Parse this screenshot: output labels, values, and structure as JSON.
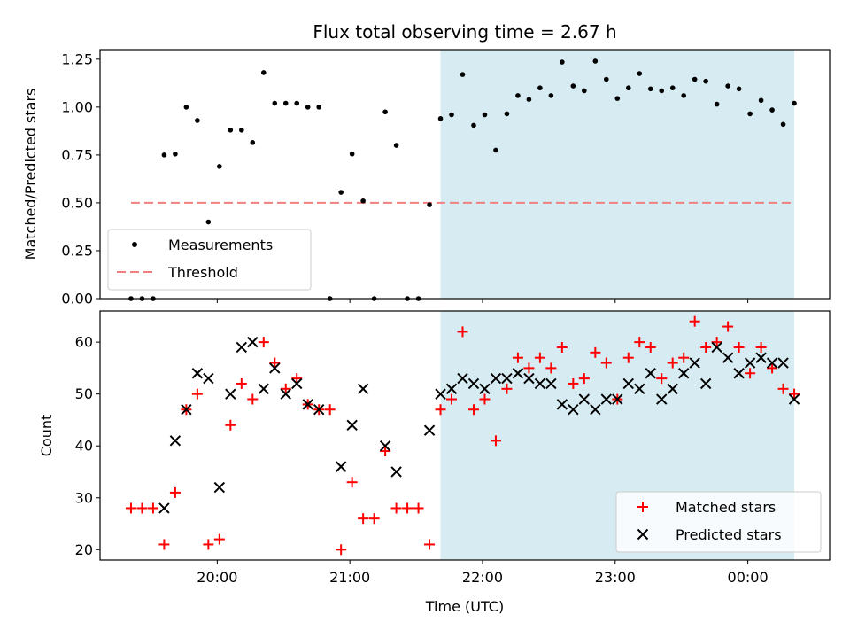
{
  "chart_data": [
    {
      "type": "scatter",
      "title": "Flux total observing time = 2.67 h",
      "ylabel": "Matched/Predicted stars",
      "xlabel": "",
      "ylim": [
        0,
        1.3
      ],
      "yticks": [
        "0.00",
        "0.25",
        "0.50",
        "0.75",
        "1.00",
        "1.25"
      ],
      "ytick_values": [
        0,
        0.25,
        0.5,
        0.75,
        1.0,
        1.25
      ],
      "shaded_region": {
        "start": "21:41",
        "end": "00:21",
        "color": "#add8e6"
      },
      "threshold": {
        "name": "Threshold",
        "value": 0.5,
        "start": "19:21",
        "end": "00:21",
        "color": "#f08080",
        "style": "dashed"
      },
      "legend_position": "lower-left",
      "series": [
        {
          "name": "Measurements",
          "marker": "dot",
          "color": "#000000",
          "points": [
            [
              "19:21",
              0.0
            ],
            [
              "19:26",
              0.0
            ],
            [
              "19:31",
              0.0
            ],
            [
              "19:36",
              0.75
            ],
            [
              "19:41",
              0.755
            ],
            [
              "19:46",
              1.0
            ],
            [
              "19:51",
              0.93
            ],
            [
              "19:56",
              0.4
            ],
            [
              "20:01",
              0.69
            ],
            [
              "20:06",
              0.88
            ],
            [
              "20:11",
              0.88
            ],
            [
              "20:16",
              0.815
            ],
            [
              "20:21",
              1.18
            ],
            [
              "20:26",
              1.02
            ],
            [
              "20:31",
              1.02
            ],
            [
              "20:36",
              1.02
            ],
            [
              "20:41",
              1.0
            ],
            [
              "20:46",
              1.0
            ],
            [
              "20:51",
              0.0
            ],
            [
              "20:56",
              0.555
            ],
            [
              "21:01",
              0.755
            ],
            [
              "21:06",
              0.51
            ],
            [
              "21:11",
              0.0
            ],
            [
              "21:16",
              0.975
            ],
            [
              "21:21",
              0.8
            ],
            [
              "21:26",
              0.0
            ],
            [
              "21:31",
              0.0
            ],
            [
              "21:36",
              0.49
            ],
            [
              "21:41",
              0.94
            ],
            [
              "21:46",
              0.96
            ],
            [
              "21:51",
              1.17
            ],
            [
              "21:56",
              0.905
            ],
            [
              "22:01",
              0.96
            ],
            [
              "22:06",
              0.775
            ],
            [
              "22:11",
              0.965
            ],
            [
              "22:16",
              1.06
            ],
            [
              "22:21",
              1.04
            ],
            [
              "22:26",
              1.1
            ],
            [
              "22:31",
              1.06
            ],
            [
              "22:36",
              1.235
            ],
            [
              "22:41",
              1.11
            ],
            [
              "22:46",
              1.085
            ],
            [
              "22:51",
              1.24
            ],
            [
              "22:56",
              1.145
            ],
            [
              "23:01",
              1.045
            ],
            [
              "23:06",
              1.1
            ],
            [
              "23:11",
              1.175
            ],
            [
              "23:16",
              1.095
            ],
            [
              "23:21",
              1.085
            ],
            [
              "23:26",
              1.1
            ],
            [
              "23:31",
              1.06
            ],
            [
              "23:36",
              1.145
            ],
            [
              "23:41",
              1.135
            ],
            [
              "23:46",
              1.015
            ],
            [
              "23:51",
              1.11
            ],
            [
              "23:56",
              1.095
            ],
            [
              "00:01",
              0.965
            ],
            [
              "00:06",
              1.035
            ],
            [
              "00:11",
              0.985
            ],
            [
              "00:16",
              0.91
            ],
            [
              "00:21",
              1.02
            ]
          ]
        }
      ]
    },
    {
      "type": "scatter",
      "title": "",
      "xlabel": "Time (UTC)",
      "ylabel": "Count",
      "ylim": [
        18,
        66
      ],
      "yticks": [
        "20",
        "30",
        "40",
        "50",
        "60"
      ],
      "ytick_values": [
        20,
        30,
        40,
        50,
        60
      ],
      "xticks": [
        "20:00",
        "21:00",
        "22:00",
        "23:00",
        "00:00"
      ],
      "x_range": [
        "19:07",
        "00:37"
      ],
      "shaded_region": {
        "start": "21:41",
        "end": "00:21",
        "color": "#add8e6"
      },
      "legend_position": "lower-right",
      "series": [
        {
          "name": "Matched stars",
          "marker": "plus",
          "color": "#ff0000",
          "points": [
            [
              "19:21",
              28
            ],
            [
              "19:26",
              28
            ],
            [
              "19:31",
              28
            ],
            [
              "19:36",
              21
            ],
            [
              "19:41",
              31
            ],
            [
              "19:46",
              47
            ],
            [
              "19:51",
              50
            ],
            [
              "19:56",
              21
            ],
            [
              "20:01",
              22
            ],
            [
              "20:06",
              44
            ],
            [
              "20:11",
              52
            ],
            [
              "20:16",
              49
            ],
            [
              "20:21",
              60
            ],
            [
              "20:26",
              56
            ],
            [
              "20:31",
              51
            ],
            [
              "20:36",
              53
            ],
            [
              "20:41",
              48
            ],
            [
              "20:46",
              47
            ],
            [
              "20:51",
              47
            ],
            [
              "20:56",
              20
            ],
            [
              "21:01",
              33
            ],
            [
              "21:06",
              26
            ],
            [
              "21:11",
              26
            ],
            [
              "21:16",
              39
            ],
            [
              "21:21",
              28
            ],
            [
              "21:26",
              28
            ],
            [
              "21:31",
              28
            ],
            [
              "21:36",
              21
            ],
            [
              "21:41",
              47
            ],
            [
              "21:46",
              49
            ],
            [
              "21:51",
              62
            ],
            [
              "21:56",
              47
            ],
            [
              "22:01",
              49
            ],
            [
              "22:06",
              41
            ],
            [
              "22:11",
              51
            ],
            [
              "22:16",
              57
            ],
            [
              "22:21",
              55
            ],
            [
              "22:26",
              57
            ],
            [
              "22:31",
              55
            ],
            [
              "22:36",
              59
            ],
            [
              "22:41",
              52
            ],
            [
              "22:46",
              53
            ],
            [
              "22:51",
              58
            ],
            [
              "22:56",
              56
            ],
            [
              "23:01",
              49
            ],
            [
              "23:06",
              57
            ],
            [
              "23:11",
              60
            ],
            [
              "23:16",
              59
            ],
            [
              "23:21",
              53
            ],
            [
              "23:26",
              56
            ],
            [
              "23:31",
              57
            ],
            [
              "23:36",
              64
            ],
            [
              "23:41",
              59
            ],
            [
              "23:46",
              60
            ],
            [
              "23:51",
              63
            ],
            [
              "23:56",
              59
            ],
            [
              "00:01",
              54
            ],
            [
              "00:06",
              59
            ],
            [
              "00:11",
              55
            ],
            [
              "00:16",
              51
            ],
            [
              "00:21",
              50
            ]
          ]
        },
        {
          "name": "Predicted stars",
          "marker": "x",
          "color": "#000000",
          "points": [
            [
              "19:36",
              28
            ],
            [
              "19:41",
              41
            ],
            [
              "19:46",
              47
            ],
            [
              "19:51",
              54
            ],
            [
              "19:56",
              53
            ],
            [
              "20:01",
              32
            ],
            [
              "20:06",
              50
            ],
            [
              "20:11",
              59
            ],
            [
              "20:16",
              60
            ],
            [
              "20:21",
              51
            ],
            [
              "20:26",
              55
            ],
            [
              "20:31",
              50
            ],
            [
              "20:36",
              52
            ],
            [
              "20:41",
              48
            ],
            [
              "20:46",
              47
            ],
            [
              "20:56",
              36
            ],
            [
              "21:01",
              44
            ],
            [
              "21:06",
              51
            ],
            [
              "21:16",
              40
            ],
            [
              "21:21",
              35
            ],
            [
              "21:36",
              43
            ],
            [
              "21:41",
              50
            ],
            [
              "21:46",
              51
            ],
            [
              "21:51",
              53
            ],
            [
              "21:56",
              52
            ],
            [
              "22:01",
              51
            ],
            [
              "22:06",
              53
            ],
            [
              "22:11",
              53
            ],
            [
              "22:16",
              54
            ],
            [
              "22:21",
              53
            ],
            [
              "22:26",
              52
            ],
            [
              "22:31",
              52
            ],
            [
              "22:36",
              48
            ],
            [
              "22:41",
              47
            ],
            [
              "22:46",
              49
            ],
            [
              "22:51",
              47
            ],
            [
              "22:56",
              49
            ],
            [
              "23:01",
              49
            ],
            [
              "23:06",
              52
            ],
            [
              "23:11",
              51
            ],
            [
              "23:16",
              54
            ],
            [
              "23:21",
              49
            ],
            [
              "23:26",
              51
            ],
            [
              "23:31",
              54
            ],
            [
              "23:36",
              56
            ],
            [
              "23:41",
              52
            ],
            [
              "23:46",
              59
            ],
            [
              "23:51",
              57
            ],
            [
              "23:56",
              54
            ],
            [
              "00:01",
              56
            ],
            [
              "00:06",
              57
            ],
            [
              "00:11",
              56
            ],
            [
              "00:16",
              56
            ],
            [
              "00:21",
              49
            ]
          ]
        }
      ]
    }
  ]
}
